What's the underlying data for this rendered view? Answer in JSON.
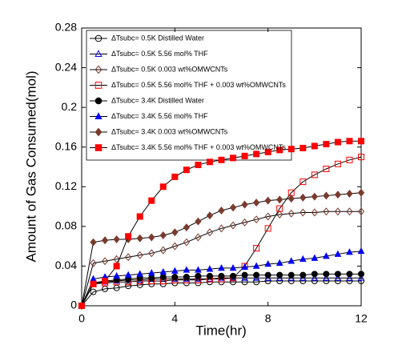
{
  "chart_data": {
    "type": "line",
    "x_label": "Time(hr)",
    "y_label": "Amount of Gas Consumed(mol)",
    "xlim": [
      0,
      12
    ],
    "ylim": [
      0,
      0.28
    ],
    "xticks": [
      0,
      4,
      8,
      12
    ],
    "yticks": [
      0,
      0.04,
      0.08,
      0.12,
      0.16,
      0.2,
      0.24,
      0.28
    ],
    "legend": "upper left",
    "x": [
      0,
      0.5,
      1,
      1.5,
      2,
      2.5,
      3,
      3.5,
      4,
      4.5,
      5,
      5.5,
      6,
      6.5,
      7,
      7.5,
      8,
      8.5,
      9,
      9.5,
      10,
      10.5,
      11,
      11.5,
      12
    ],
    "series": [
      {
        "name": "ΔTsubc= 0.5K Distilled Water",
        "color": "#000000",
        "marker": "circle",
        "filled": false,
        "values": [
          0,
          0.014,
          0.017,
          0.018,
          0.02,
          0.021,
          0.022,
          0.022,
          0.023,
          0.023,
          0.023,
          0.024,
          0.024,
          0.024,
          0.024,
          0.024,
          0.025,
          0.025,
          0.025,
          0.025,
          0.025,
          0.025,
          0.025,
          0.025,
          0.025
        ]
      },
      {
        "name": "ΔTsubc= 0.5K 5.56 mol% THF",
        "color": "#0000ff",
        "marker": "triangle",
        "filled": false,
        "values": [
          0,
          0.022,
          0.024,
          0.025,
          0.026,
          0.026,
          0.027,
          0.027,
          0.027,
          0.027,
          0.027,
          0.027,
          0.028,
          0.028,
          0.028,
          0.028,
          0.028,
          0.028,
          0.028,
          0.028,
          0.028,
          0.028,
          0.028,
          0.028,
          0.028
        ]
      },
      {
        "name": "ΔTsubc= 0.5K 0.003 wt%OMWCNTs",
        "color": "#7a3b2e",
        "marker": "diamond",
        "filled": false,
        "values": [
          0,
          0.043,
          0.045,
          0.047,
          0.049,
          0.051,
          0.053,
          0.056,
          0.06,
          0.064,
          0.069,
          0.074,
          0.078,
          0.081,
          0.084,
          0.087,
          0.09,
          0.092,
          0.093,
          0.094,
          0.094,
          0.095,
          0.095,
          0.095,
          0.095
        ]
      },
      {
        "name": "ΔTsubc= 0.5K 5.56 mol% THF + 0.003 wt%OMWCNTs",
        "color": "#ff0000",
        "marker": "square",
        "filled": false,
        "values": [
          0,
          0.022,
          0.023,
          0.024,
          0.024,
          0.025,
          0.025,
          0.025,
          0.026,
          0.026,
          0.026,
          0.027,
          0.027,
          0.028,
          0.04,
          0.058,
          0.078,
          0.098,
          0.114,
          0.125,
          0.132,
          0.138,
          0.143,
          0.147,
          0.15
        ]
      },
      {
        "name": "ΔTsubc= 3.4K Distilled Water",
        "color": "#000000",
        "marker": "circle",
        "filled": true,
        "values": [
          0,
          0.023,
          0.025,
          0.026,
          0.027,
          0.028,
          0.028,
          0.029,
          0.029,
          0.029,
          0.03,
          0.03,
          0.03,
          0.03,
          0.031,
          0.031,
          0.031,
          0.031,
          0.031,
          0.031,
          0.032,
          0.032,
          0.032,
          0.032,
          0.032
        ]
      },
      {
        "name": "ΔTsubc= 3.4K 5.56 mol% THF",
        "color": "#0000ff",
        "marker": "triangle",
        "filled": true,
        "values": [
          0,
          0.027,
          0.029,
          0.03,
          0.031,
          0.032,
          0.033,
          0.034,
          0.035,
          0.036,
          0.036,
          0.037,
          0.038,
          0.038,
          0.039,
          0.04,
          0.042,
          0.043,
          0.045,
          0.047,
          0.048,
          0.05,
          0.052,
          0.054,
          0.055
        ]
      },
      {
        "name": "ΔTsubc= 3.4K 0.003 wt%OMWCNTs",
        "color": "#7a3b2e",
        "marker": "diamond",
        "filled": true,
        "values": [
          0,
          0.064,
          0.066,
          0.067,
          0.067,
          0.068,
          0.069,
          0.071,
          0.074,
          0.079,
          0.085,
          0.091,
          0.096,
          0.099,
          0.102,
          0.104,
          0.106,
          0.107,
          0.108,
          0.109,
          0.11,
          0.111,
          0.112,
          0.113,
          0.114
        ]
      },
      {
        "name": "ΔTsubc= 3.4K 5.56 mol% THF + 0.003 wt%OMWCNTs",
        "color": "#ff0000",
        "marker": "square",
        "filled": true,
        "values": [
          0,
          0.022,
          0.025,
          0.04,
          0.07,
          0.09,
          0.106,
          0.12,
          0.13,
          0.137,
          0.142,
          0.145,
          0.147,
          0.149,
          0.151,
          0.153,
          0.155,
          0.157,
          0.158,
          0.159,
          0.161,
          0.163,
          0.165,
          0.166,
          0.166
        ]
      }
    ]
  }
}
